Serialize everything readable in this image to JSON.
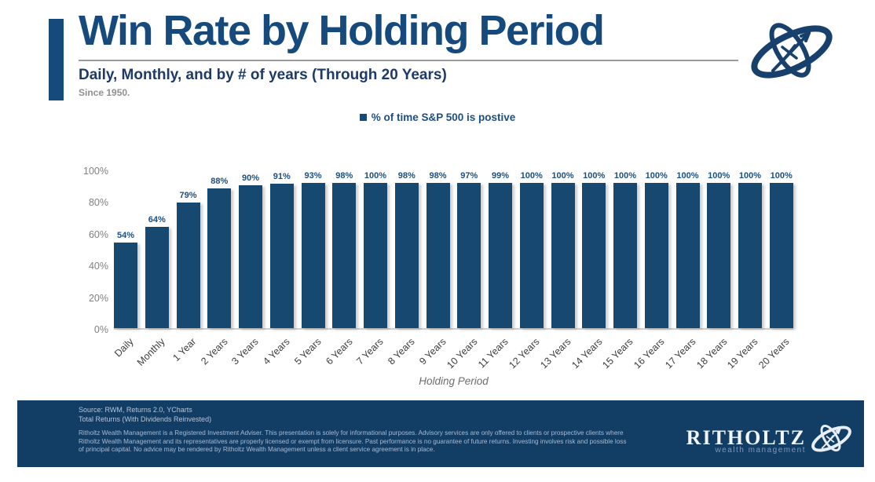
{
  "header": {
    "title": "Win Rate by Holding Period",
    "subtitle": "Daily, Monthly, and by # of years (Through 20 Years)",
    "note": "Since 1950."
  },
  "legend": {
    "label": "% of time S&P 500 is postive"
  },
  "chart_data": {
    "type": "bar",
    "categories": [
      "Daily",
      "Monthly",
      "1 Year",
      "2 Years",
      "3 Years",
      "4 Years",
      "5 Years",
      "6 Years",
      "7 Years",
      "8 Years",
      "9 Years",
      "10 Years",
      "11 Years",
      "12 Years",
      "13 Years",
      "14 Years",
      "15 Years",
      "16 Years",
      "17 Years",
      "18 Years",
      "19 Years",
      "20 Years"
    ],
    "values": [
      54,
      64,
      79,
      88,
      90,
      91,
      93,
      98,
      100,
      98,
      98,
      97,
      99,
      100,
      100,
      100,
      100,
      100,
      100,
      100,
      100,
      100
    ],
    "value_labels": [
      "54%",
      "64%",
      "79%",
      "88%",
      "90%",
      "91%",
      "93%",
      "98%",
      "100%",
      "98%",
      "98%",
      "97%",
      "99%",
      "100%",
      "100%",
      "100%",
      "100%",
      "100%",
      "100%",
      "100%",
      "100%",
      "100%"
    ],
    "title": "Win Rate by Holding Period",
    "xlabel": "Holding Period",
    "ylabel": "",
    "ylim": [
      0,
      100
    ],
    "yticks": [
      "0%",
      "20%",
      "40%",
      "60%",
      "80%",
      "100%"
    ],
    "grid": false,
    "legend_entries": [
      "% of time S&P 500 is postive"
    ],
    "legend_position": "top-center",
    "bar_color": "#17486F"
  },
  "footer": {
    "source_line1": "Source: RWM, Returns 2.0, YCharts",
    "source_line2": "Total Returns (With Dividends Reinvested)",
    "disclaimer": "Ritholtz Wealth Management is a Registered Investment Adviser. This presentation is solely for informational purposes. Advisory services are only offered to clients or prospective clients where Ritholtz Wealth Management and its representatives are properly licensed or exempt from licensure. Past performance is no guarantee of future returns. Investing involves risk and possible loss of principal capital. No advice may be rendered by Ritholtz Wealth Management unless a client service agreement is in place.",
    "brand_name": "RITHOLTZ",
    "brand_subtitle": "wealth management"
  },
  "colors": {
    "accent_navy": "#164a7c",
    "bar_navy": "#17486F",
    "footer_bg": "#123E66",
    "tick_gray": "#7f7f7f"
  }
}
